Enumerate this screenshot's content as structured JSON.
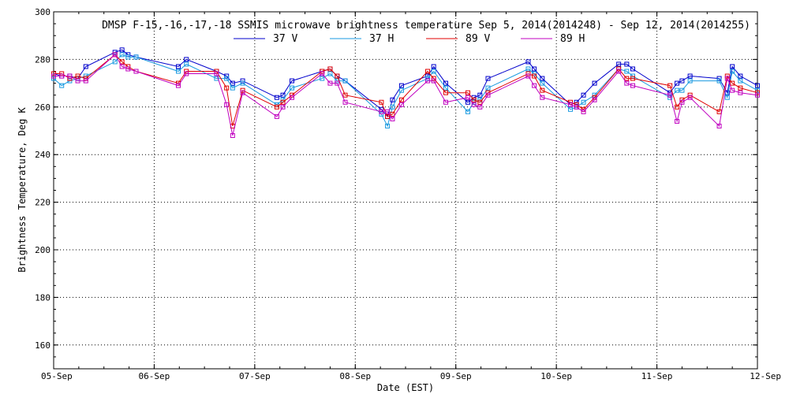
{
  "chart_data": {
    "type": "line",
    "title": "DMSP F-15,-16,-17,-18 SSMIS microwave brightness temperature Sep  5, 2014(2014248) - Sep 12, 2014(2014255)",
    "xlabel": "Date (EST)",
    "ylabel": "Brightness Temperature, Deg K",
    "xlim": [
      0,
      7
    ],
    "ylim": [
      150,
      300
    ],
    "x_tick_labels": [
      "05-Sep",
      "06-Sep",
      "07-Sep",
      "08-Sep",
      "09-Sep",
      "10-Sep",
      "11-Sep",
      "12-Sep"
    ],
    "y_tick_values": [
      160,
      180,
      200,
      220,
      240,
      260,
      280,
      300
    ],
    "grid": true,
    "legend_position": "top",
    "series": [
      {
        "name": "37 V",
        "color": "#0000cc",
        "points": [
          [
            0.0,
            274
          ],
          [
            0.08,
            273
          ],
          [
            0.16,
            273
          ],
          [
            0.24,
            272
          ],
          [
            0.32,
            277
          ],
          [
            0.61,
            283
          ],
          [
            0.68,
            284
          ],
          [
            0.74,
            282
          ],
          [
            0.82,
            281
          ],
          [
            1.24,
            277
          ],
          [
            1.32,
            280
          ],
          [
            1.62,
            275
          ],
          [
            1.72,
            273
          ],
          [
            1.78,
            270
          ],
          [
            1.88,
            271
          ],
          [
            2.22,
            264
          ],
          [
            2.28,
            265
          ],
          [
            2.37,
            271
          ],
          [
            2.67,
            275
          ],
          [
            2.75,
            276
          ],
          [
            2.82,
            273
          ],
          [
            2.9,
            271
          ],
          [
            3.26,
            259
          ],
          [
            3.32,
            256
          ],
          [
            3.37,
            263
          ],
          [
            3.46,
            269
          ],
          [
            3.72,
            273
          ],
          [
            3.78,
            277
          ],
          [
            3.9,
            270
          ],
          [
            4.12,
            262
          ],
          [
            4.18,
            264
          ],
          [
            4.24,
            265
          ],
          [
            4.32,
            272
          ],
          [
            4.72,
            279
          ],
          [
            4.78,
            276
          ],
          [
            4.86,
            272
          ],
          [
            5.14,
            261
          ],
          [
            5.2,
            262
          ],
          [
            5.27,
            265
          ],
          [
            5.38,
            270
          ],
          [
            5.62,
            278
          ],
          [
            5.7,
            278
          ],
          [
            5.76,
            276
          ],
          [
            6.13,
            266
          ],
          [
            6.2,
            270
          ],
          [
            6.25,
            271
          ],
          [
            6.33,
            273
          ],
          [
            6.62,
            272
          ],
          [
            6.7,
            266
          ],
          [
            6.75,
            277
          ],
          [
            6.83,
            273
          ],
          [
            7.0,
            269
          ]
        ]
      },
      {
        "name": "37 H",
        "color": "#1a9ae0",
        "points": [
          [
            0.0,
            272
          ],
          [
            0.08,
            269
          ],
          [
            0.16,
            271
          ],
          [
            0.24,
            272
          ],
          [
            0.32,
            273
          ],
          [
            0.61,
            279
          ],
          [
            0.68,
            282
          ],
          [
            0.74,
            281
          ],
          [
            0.82,
            281
          ],
          [
            1.24,
            275
          ],
          [
            1.32,
            278
          ],
          [
            1.62,
            272
          ],
          [
            1.72,
            272
          ],
          [
            1.78,
            268
          ],
          [
            1.88,
            270
          ],
          [
            2.22,
            261
          ],
          [
            2.28,
            263
          ],
          [
            2.37,
            268
          ],
          [
            2.67,
            272
          ],
          [
            2.75,
            274
          ],
          [
            2.82,
            271
          ],
          [
            2.9,
            271
          ],
          [
            3.26,
            257
          ],
          [
            3.32,
            252
          ],
          [
            3.37,
            260
          ],
          [
            3.46,
            267
          ],
          [
            3.72,
            272
          ],
          [
            3.78,
            275
          ],
          [
            3.9,
            268
          ],
          [
            4.12,
            258
          ],
          [
            4.18,
            262
          ],
          [
            4.24,
            263
          ],
          [
            4.32,
            268
          ],
          [
            4.72,
            276
          ],
          [
            4.78,
            274
          ],
          [
            4.86,
            270
          ],
          [
            5.14,
            259
          ],
          [
            5.2,
            260
          ],
          [
            5.27,
            262
          ],
          [
            5.38,
            265
          ],
          [
            5.62,
            276
          ],
          [
            5.7,
            275
          ],
          [
            5.76,
            273
          ],
          [
            6.13,
            264
          ],
          [
            6.2,
            267
          ],
          [
            6.25,
            267
          ],
          [
            6.33,
            271
          ],
          [
            6.62,
            271
          ],
          [
            6.7,
            264
          ],
          [
            6.75,
            275
          ],
          [
            6.83,
            271
          ],
          [
            7.0,
            267
          ]
        ]
      },
      {
        "name": "89 V",
        "color": "#e00000",
        "points": [
          [
            0.0,
            274
          ],
          [
            0.08,
            274
          ],
          [
            0.16,
            272
          ],
          [
            0.24,
            273
          ],
          [
            0.32,
            272
          ],
          [
            0.61,
            282
          ],
          [
            0.68,
            279
          ],
          [
            0.74,
            277
          ],
          [
            0.82,
            275
          ],
          [
            1.24,
            270
          ],
          [
            1.32,
            275
          ],
          [
            1.62,
            275
          ],
          [
            1.72,
            268
          ],
          [
            1.78,
            252
          ],
          [
            1.88,
            267
          ],
          [
            2.22,
            260
          ],
          [
            2.28,
            262
          ],
          [
            2.37,
            265
          ],
          [
            2.67,
            275
          ],
          [
            2.75,
            276
          ],
          [
            2.82,
            273
          ],
          [
            2.9,
            265
          ],
          [
            3.26,
            262
          ],
          [
            3.32,
            256
          ],
          [
            3.37,
            257
          ],
          [
            3.46,
            263
          ],
          [
            3.72,
            275
          ],
          [
            3.78,
            272
          ],
          [
            3.9,
            266
          ],
          [
            4.12,
            266
          ],
          [
            4.18,
            263
          ],
          [
            4.24,
            262
          ],
          [
            4.32,
            266
          ],
          [
            4.72,
            274
          ],
          [
            4.78,
            273
          ],
          [
            4.86,
            267
          ],
          [
            5.14,
            262
          ],
          [
            5.2,
            261
          ],
          [
            5.27,
            259
          ],
          [
            5.38,
            264
          ],
          [
            5.62,
            276
          ],
          [
            5.7,
            272
          ],
          [
            5.76,
            272
          ],
          [
            6.13,
            269
          ],
          [
            6.2,
            260
          ],
          [
            6.25,
            263
          ],
          [
            6.33,
            265
          ],
          [
            6.62,
            258
          ],
          [
            6.7,
            273
          ],
          [
            6.75,
            270
          ],
          [
            6.83,
            268
          ],
          [
            7.0,
            266
          ]
        ]
      },
      {
        "name": "89 H",
        "color": "#c000c0",
        "points": [
          [
            0.0,
            273
          ],
          [
            0.08,
            273
          ],
          [
            0.16,
            273
          ],
          [
            0.24,
            271
          ],
          [
            0.32,
            271
          ],
          [
            0.61,
            282
          ],
          [
            0.68,
            277
          ],
          [
            0.74,
            276
          ],
          [
            0.82,
            275
          ],
          [
            1.24,
            269
          ],
          [
            1.32,
            274
          ],
          [
            1.62,
            274
          ],
          [
            1.72,
            261
          ],
          [
            1.78,
            248
          ],
          [
            1.88,
            266
          ],
          [
            2.22,
            256
          ],
          [
            2.28,
            260
          ],
          [
            2.37,
            264
          ],
          [
            2.67,
            274
          ],
          [
            2.75,
            270
          ],
          [
            2.82,
            270
          ],
          [
            2.9,
            262
          ],
          [
            3.26,
            258
          ],
          [
            3.32,
            258
          ],
          [
            3.37,
            255
          ],
          [
            3.46,
            261
          ],
          [
            3.72,
            271
          ],
          [
            3.78,
            271
          ],
          [
            3.9,
            262
          ],
          [
            4.12,
            264
          ],
          [
            4.18,
            261
          ],
          [
            4.24,
            260
          ],
          [
            4.32,
            265
          ],
          [
            4.72,
            273
          ],
          [
            4.78,
            269
          ],
          [
            4.86,
            264
          ],
          [
            5.14,
            261
          ],
          [
            5.2,
            260
          ],
          [
            5.27,
            258
          ],
          [
            5.38,
            263
          ],
          [
            5.62,
            275
          ],
          [
            5.7,
            270
          ],
          [
            5.76,
            269
          ],
          [
            6.13,
            265
          ],
          [
            6.2,
            254
          ],
          [
            6.25,
            262
          ],
          [
            6.33,
            264
          ],
          [
            6.62,
            252
          ],
          [
            6.7,
            272
          ],
          [
            6.75,
            267
          ],
          [
            6.83,
            266
          ],
          [
            7.0,
            265
          ]
        ]
      }
    ]
  }
}
